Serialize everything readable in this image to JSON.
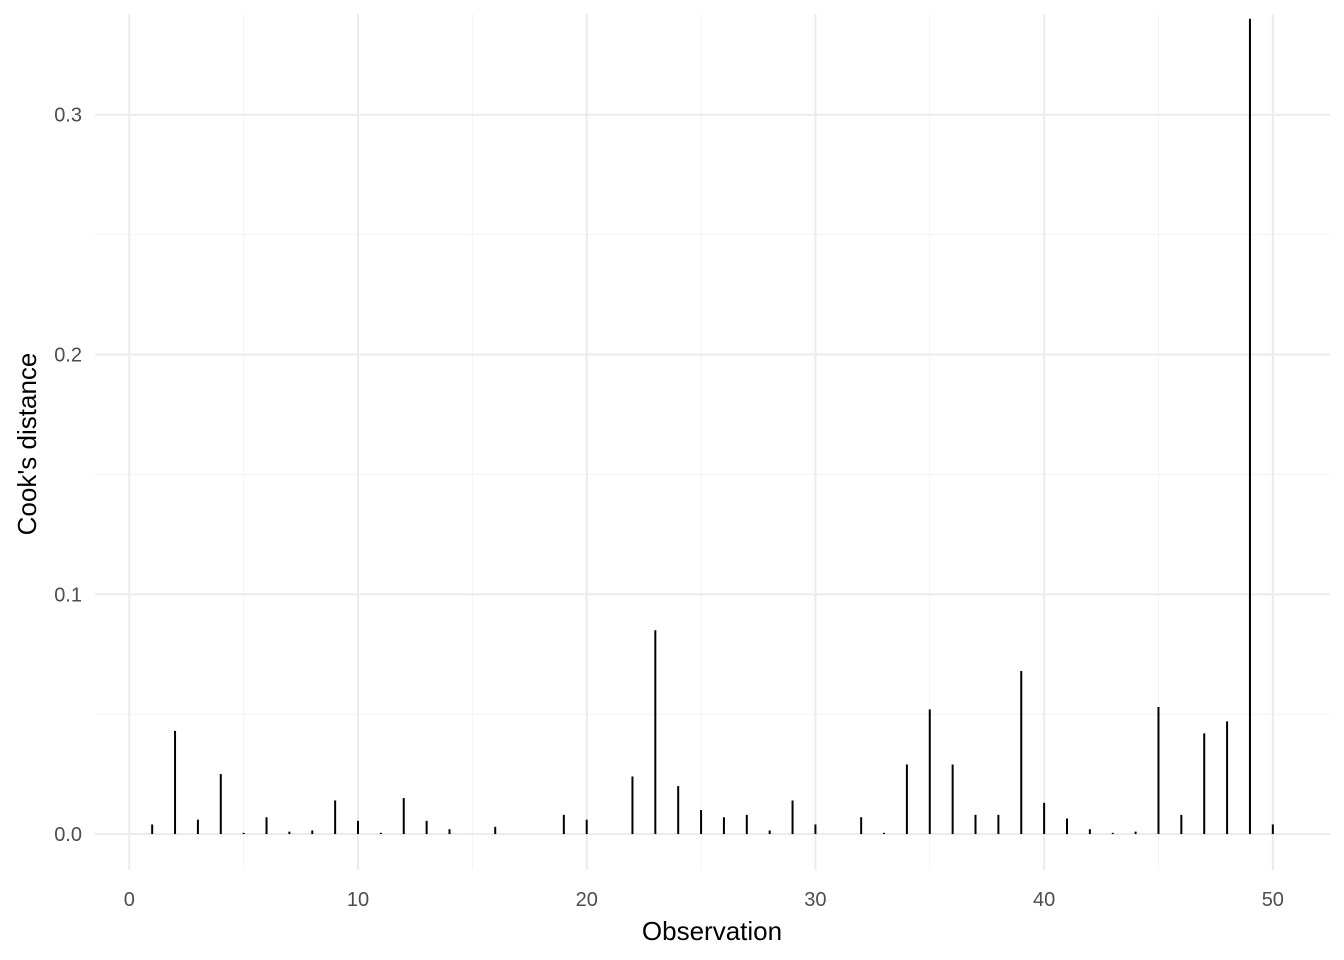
{
  "chart_data": {
    "type": "bar",
    "xlabel": "Observation",
    "ylabel": "Cook's distance",
    "xlim": [
      -1.5,
      52.5
    ],
    "ylim": [
      -0.015,
      0.342
    ],
    "x_ticks": [
      0,
      10,
      20,
      30,
      40,
      50
    ],
    "x_tick_labels": [
      "0",
      "10",
      "20",
      "30",
      "40",
      "50"
    ],
    "y_ticks": [
      0.0,
      0.1,
      0.2,
      0.3
    ],
    "y_tick_labels": [
      "0.0",
      "0.1",
      "0.2",
      "0.3"
    ],
    "grid": true,
    "bar_color": "#000000",
    "x": [
      1,
      2,
      3,
      4,
      5,
      6,
      7,
      8,
      9,
      10,
      11,
      12,
      13,
      14,
      15,
      16,
      17,
      18,
      19,
      20,
      21,
      22,
      23,
      24,
      25,
      26,
      27,
      28,
      29,
      30,
      31,
      32,
      33,
      34,
      35,
      36,
      37,
      38,
      39,
      40,
      41,
      42,
      43,
      44,
      45,
      46,
      47,
      48,
      49,
      50
    ],
    "values": [
      0.004,
      0.043,
      0.006,
      0.025,
      0.0005,
      0.007,
      0.001,
      0.0015,
      0.014,
      0.0055,
      0.0005,
      0.015,
      0.0055,
      0.002,
      0.0,
      0.003,
      0.0,
      0.0,
      0.008,
      0.006,
      0.0,
      0.024,
      0.085,
      0.02,
      0.01,
      0.007,
      0.008,
      0.0015,
      0.014,
      0.004,
      0.0,
      0.007,
      0.0005,
      0.029,
      0.052,
      0.029,
      0.008,
      0.008,
      0.068,
      0.013,
      0.0065,
      0.002,
      0.0005,
      0.001,
      0.053,
      0.008,
      0.042,
      0.047,
      0.34,
      0.004
    ]
  }
}
